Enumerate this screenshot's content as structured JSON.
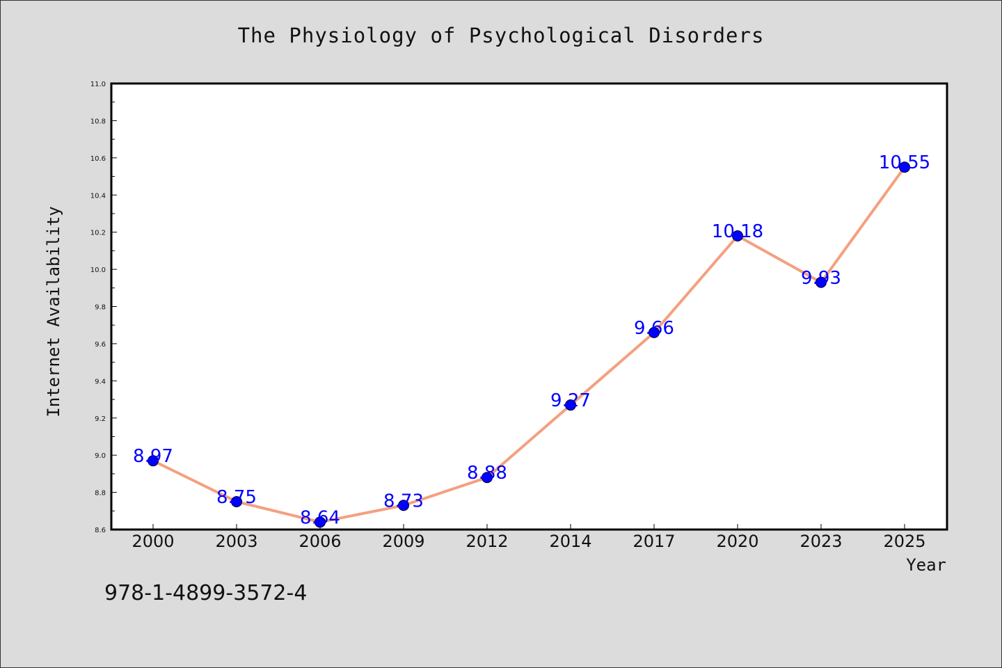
{
  "isbn_text": "978-1-4899-3572-4",
  "chart_data": {
    "type": "line",
    "title": "The Physiology of Psychological Disorders",
    "xlabel": "Year",
    "ylabel": "Internet Availability",
    "categories": [
      "2000",
      "2003",
      "2006",
      "2009",
      "2012",
      "2014",
      "2017",
      "2020",
      "2023",
      "2025"
    ],
    "values": [
      8.97,
      8.75,
      8.64,
      8.73,
      8.88,
      9.27,
      9.66,
      10.18,
      9.93,
      10.55
    ],
    "data_labels": [
      "8.97",
      "8.75",
      "8.64",
      "8.73",
      "8.88",
      "9.27",
      "9.66",
      "10.18",
      "9.93",
      "10.55"
    ],
    "ylim": [
      8.6,
      11.0
    ],
    "yticks": [
      "8.6",
      "8.8",
      "9.0",
      "9.2",
      "9.4",
      "9.6",
      "9.8",
      "10.0",
      "10.2",
      "10.4",
      "10.6",
      "10.8",
      "11.0"
    ],
    "grid": false,
    "colors": {
      "line": "#f4a07f",
      "marker": "#0000ff",
      "data_label": "#0000ff",
      "plot_background": "#ffffff",
      "figure_background": "#dcdcdc"
    }
  }
}
